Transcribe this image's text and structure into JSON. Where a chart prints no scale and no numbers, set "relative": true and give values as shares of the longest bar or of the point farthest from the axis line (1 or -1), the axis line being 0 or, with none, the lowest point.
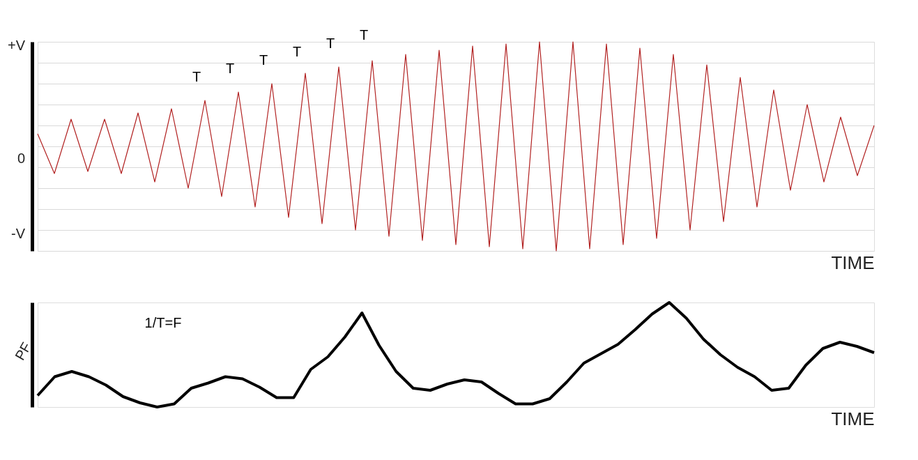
{
  "chart_data": [
    {
      "type": "line",
      "xlabel": "TIME",
      "grid": "y",
      "relative": true,
      "tick_labels": false,
      "categories": [
        null,
        null,
        null,
        null,
        null,
        null,
        null,
        null,
        null,
        null,
        null,
        null,
        null,
        null,
        null,
        null,
        null,
        null,
        null,
        null,
        null,
        null,
        null,
        null,
        null,
        null,
        null,
        null,
        null,
        null,
        null,
        null,
        null,
        null,
        null,
        null,
        null,
        null,
        null,
        null,
        null,
        null,
        null,
        null,
        null,
        null,
        null,
        null,
        null,
        null,
        null
      ],
      "annotations": [
        "+V",
        "0",
        "-V",
        "T",
        "T",
        "T",
        "T",
        "T",
        "T"
      ],
      "series": [
        {
          "color": "#b22222",
          "values": [
            0.56,
            0.37,
            0.63,
            0.38,
            0.63,
            0.37,
            0.66,
            0.33,
            0.68,
            0.3,
            0.72,
            0.26,
            0.76,
            0.21,
            0.8,
            0.16,
            0.85,
            0.13,
            0.88,
            0.1,
            0.91,
            0.07,
            0.94,
            0.05,
            0.96,
            0.03,
            0.98,
            0.02,
            0.99,
            0.01,
            1.0,
            0.0,
            1.0,
            0.01,
            0.99,
            0.03,
            0.97,
            0.06,
            0.94,
            0.1,
            0.89,
            0.14,
            0.83,
            0.21,
            0.77,
            0.29,
            0.7,
            0.33,
            0.64,
            0.36,
            0.6
          ]
        }
      ]
    },
    {
      "type": "line",
      "xlabel": "TIME",
      "ylabel": "PF",
      "relative": true,
      "tick_labels": false,
      "categories": [
        null,
        null,
        null,
        null,
        null,
        null,
        null,
        null,
        null,
        null,
        null,
        null,
        null,
        null,
        null,
        null,
        null,
        null,
        null,
        null,
        null,
        null,
        null,
        null,
        null,
        null,
        null,
        null,
        null,
        null,
        null,
        null,
        null,
        null,
        null,
        null,
        null,
        null,
        null,
        null,
        null,
        null,
        null,
        null,
        null,
        null,
        null,
        null,
        null,
        null
      ],
      "annotations": [
        "1/T=F"
      ],
      "series": [
        {
          "color": "#000000",
          "values": [
            0.11,
            0.29,
            0.34,
            0.29,
            0.21,
            0.1,
            0.04,
            0.0,
            0.03,
            0.18,
            0.23,
            0.29,
            0.27,
            0.19,
            0.09,
            0.09,
            0.36,
            0.48,
            0.67,
            0.9,
            0.59,
            0.34,
            0.18,
            0.16,
            0.22,
            0.26,
            0.24,
            0.13,
            0.03,
            0.03,
            0.08,
            0.24,
            0.42,
            0.51,
            0.6,
            0.74,
            0.89,
            1.0,
            0.85,
            0.65,
            0.5,
            0.38,
            0.29,
            0.16,
            0.18,
            0.4,
            0.56,
            0.62,
            0.58,
            0.52
          ]
        }
      ]
    }
  ]
}
